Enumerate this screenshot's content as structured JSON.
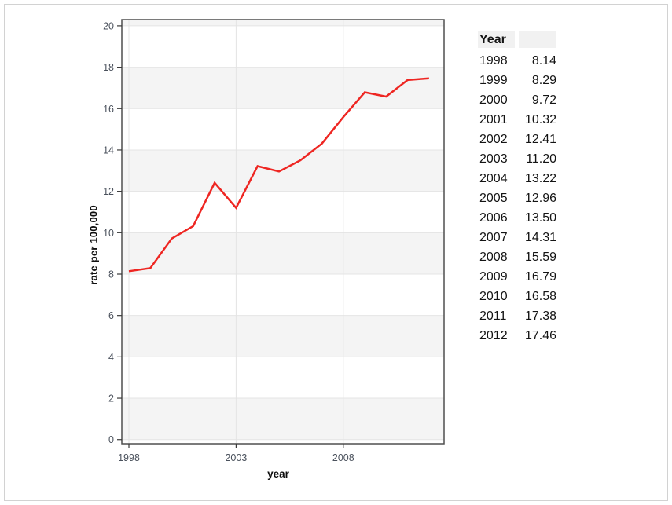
{
  "chart_data": {
    "type": "line",
    "title": "",
    "xlabel": "year",
    "ylabel": "rate per 100,000",
    "x": [
      1998,
      1999,
      2000,
      2001,
      2002,
      2003,
      2004,
      2005,
      2006,
      2007,
      2008,
      2009,
      2010,
      2011,
      2012
    ],
    "series": [
      {
        "name": "rate per 100,000",
        "values": [
          8.14,
          8.29,
          9.72,
          10.32,
          12.41,
          11.2,
          13.22,
          12.96,
          13.5,
          14.31,
          15.59,
          16.79,
          16.58,
          17.38,
          17.46
        ]
      }
    ],
    "xlim": [
      1997.67,
      2012.7
    ],
    "ylim": [
      -0.2,
      20.3
    ],
    "x_ticks": [
      1998,
      2003,
      2008
    ],
    "y_ticks": [
      0,
      2,
      4,
      6,
      8,
      10,
      12,
      14,
      16,
      18,
      20
    ],
    "grid": true,
    "legend": "none",
    "banded_background": true,
    "colors": {
      "line": "#ee2622",
      "band": "#f4f4f4",
      "grid": "#e4e4e4",
      "panel_border": "#4f4f4f",
      "tick_mark": "#3a3a3a",
      "tick_label": "#4a515c",
      "axis_title": "#0f0f0f"
    }
  },
  "table": {
    "headers": [
      "Year",
      ""
    ],
    "rows": [
      [
        "1998",
        "8.14"
      ],
      [
        "1999",
        "8.29"
      ],
      [
        "2000",
        "9.72"
      ],
      [
        "2001",
        "10.32"
      ],
      [
        "2002",
        "12.41"
      ],
      [
        "2003",
        "11.20"
      ],
      [
        "2004",
        "13.22"
      ],
      [
        "2005",
        "12.96"
      ],
      [
        "2006",
        "13.50"
      ],
      [
        "2007",
        "14.31"
      ],
      [
        "2008",
        "15.59"
      ],
      [
        "2009",
        "16.79"
      ],
      [
        "2010",
        "16.58"
      ],
      [
        "2011",
        "17.38"
      ],
      [
        "2012",
        "17.46"
      ]
    ]
  }
}
